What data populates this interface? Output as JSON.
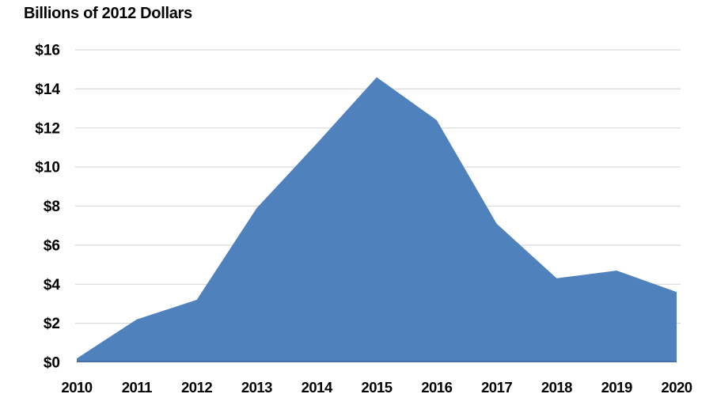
{
  "chart_data": {
    "type": "area",
    "title": "Billions of 2012 Dollars",
    "categories": [
      "2010",
      "2011",
      "2012",
      "2013",
      "2014",
      "2015",
      "2016",
      "2017",
      "2018",
      "2019",
      "2020"
    ],
    "values": [
      0.2,
      2.2,
      3.2,
      7.9,
      11.2,
      14.6,
      12.4,
      7.1,
      4.3,
      4.7,
      3.6
    ],
    "xlabel": "",
    "ylabel": "",
    "ylim": [
      0,
      16
    ],
    "ytick_step": 2,
    "ytick_labels": [
      "$0",
      "$2",
      "$4",
      "$6",
      "$8",
      "$10",
      "$12",
      "$14",
      "$16"
    ],
    "grid": true,
    "legend": "none",
    "area_color": "#4f81bd",
    "area_edge_color": "#476fa5",
    "gridline_color": "#d9d9d9",
    "text_color": "#000000",
    "background_color": "#ffffff"
  }
}
